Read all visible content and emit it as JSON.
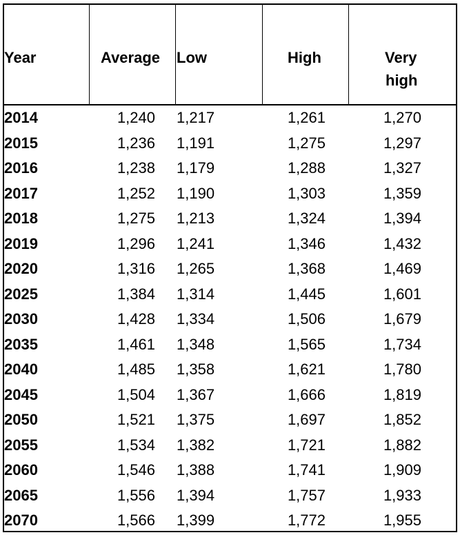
{
  "headers": {
    "year": "Year",
    "average": "Average",
    "low": "Low",
    "high": "High",
    "very_high_1": "Very",
    "very_high_2": "high"
  },
  "rows": [
    {
      "year": "2014",
      "average": "1,240",
      "low": "1,217",
      "high": "1,261",
      "very_high": "1,270"
    },
    {
      "year": "2015",
      "average": "1,236",
      "low": "1,191",
      "high": "1,275",
      "very_high": "1,297"
    },
    {
      "year": "2016",
      "average": "1,238",
      "low": "1,179",
      "high": "1,288",
      "very_high": "1,327"
    },
    {
      "year": "2017",
      "average": "1,252",
      "low": "1,190",
      "high": "1,303",
      "very_high": "1,359"
    },
    {
      "year": "2018",
      "average": "1,275",
      "low": "1,213",
      "high": "1,324",
      "very_high": "1,394"
    },
    {
      "year": "2019",
      "average": "1,296",
      "low": "1,241",
      "high": "1,346",
      "very_high": "1,432"
    },
    {
      "year": "2020",
      "average": "1,316",
      "low": "1,265",
      "high": "1,368",
      "very_high": "1,469"
    },
    {
      "year": "2025",
      "average": "1,384",
      "low": "1,314",
      "high": "1,445",
      "very_high": "1,601"
    },
    {
      "year": "2030",
      "average": "1,428",
      "low": "1,334",
      "high": "1,506",
      "very_high": "1,679"
    },
    {
      "year": "2035",
      "average": "1,461",
      "low": "1,348",
      "high": "1,565",
      "very_high": "1,734"
    },
    {
      "year": "2040",
      "average": "1,485",
      "low": "1,358",
      "high": "1,621",
      "very_high": "1,780"
    },
    {
      "year": "2045",
      "average": "1,504",
      "low": "1,367",
      "high": "1,666",
      "very_high": "1,819"
    },
    {
      "year": "2050",
      "average": "1,521",
      "low": "1,375",
      "high": "1,697",
      "very_high": "1,852"
    },
    {
      "year": "2055",
      "average": "1,534",
      "low": "1,382",
      "high": "1,721",
      "very_high": "1,882"
    },
    {
      "year": "2060",
      "average": "1,546",
      "low": "1,388",
      "high": "1,741",
      "very_high": "1,909"
    },
    {
      "year": "2065",
      "average": "1,556",
      "low": "1,394",
      "high": "1,757",
      "very_high": "1,933"
    },
    {
      "year": "2070",
      "average": "1,566",
      "low": "1,399",
      "high": "1,772",
      "very_high": "1,955"
    }
  ]
}
